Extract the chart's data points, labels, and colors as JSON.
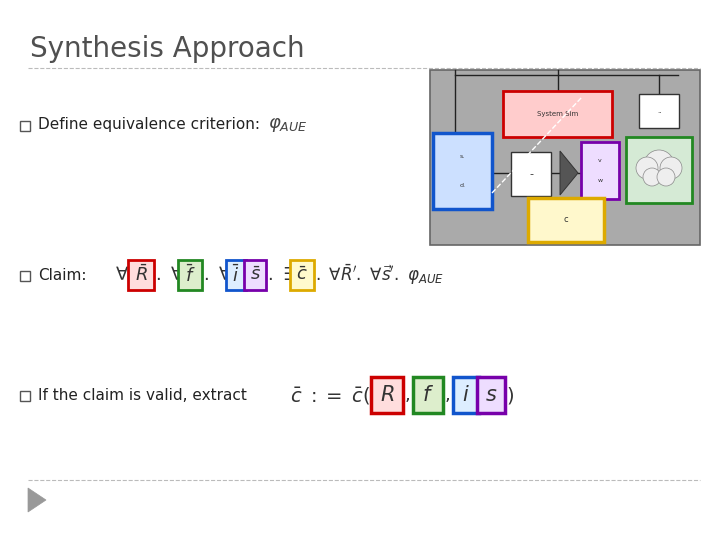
{
  "title": "Synthesis Approach",
  "bg_color": "#ffffff",
  "title_color": "#505050",
  "title_fontsize": 20,
  "bullet_fontsize": 11,
  "line1_text": "Define equivalence criterion:",
  "line2_text": "Claim:",
  "line3_text": "If the claim is valid, extract"
}
